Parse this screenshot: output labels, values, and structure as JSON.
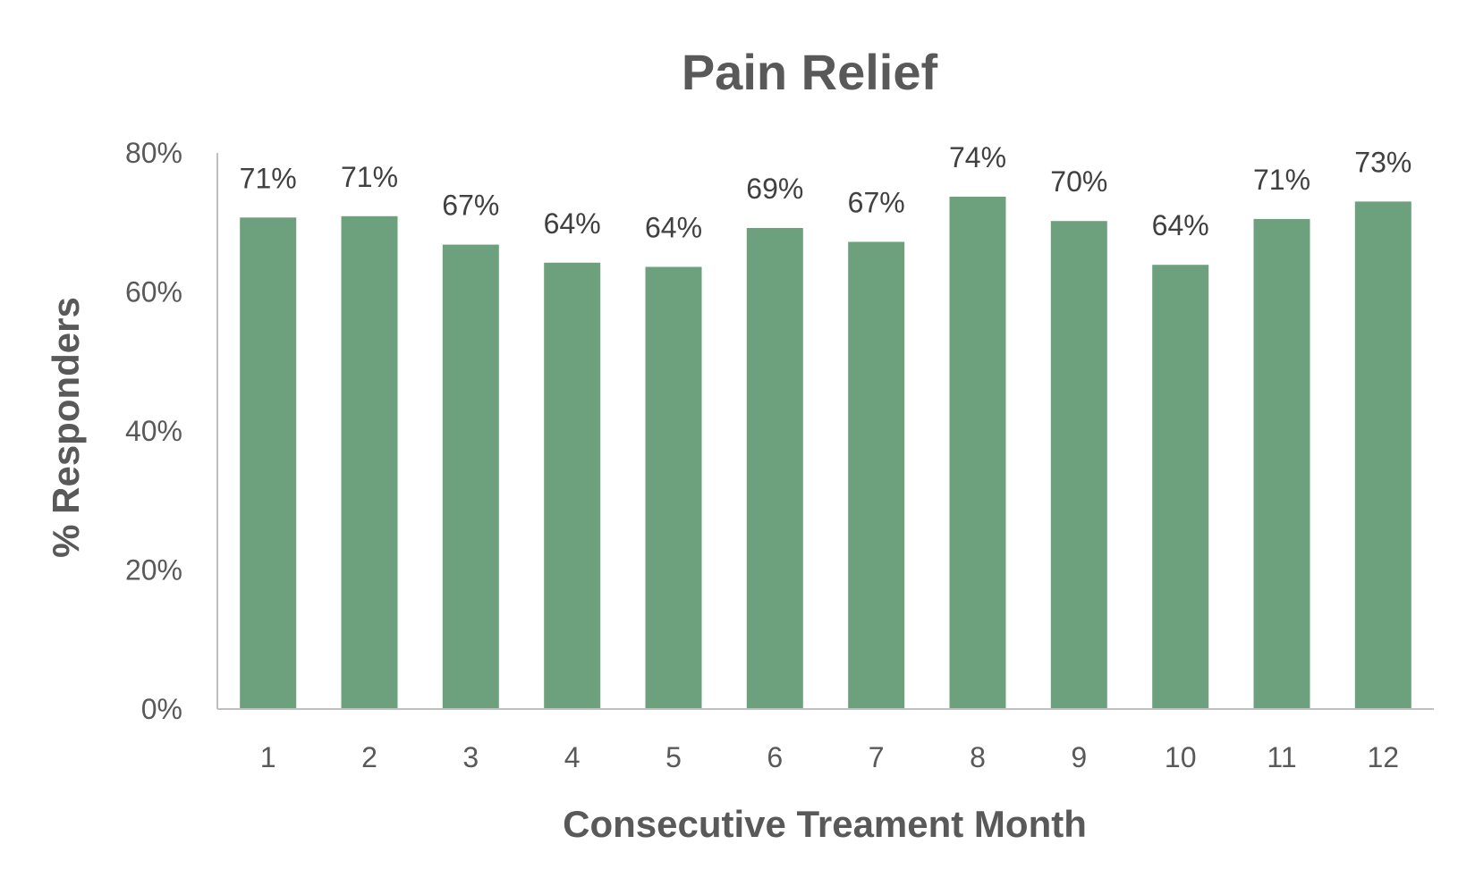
{
  "chart_data": {
    "type": "bar",
    "title": "Pain Relief",
    "xlabel": "Consecutive Treament Month",
    "ylabel": "% Responders",
    "categories": [
      "1",
      "2",
      "3",
      "4",
      "5",
      "6",
      "7",
      "8",
      "9",
      "10",
      "11",
      "12"
    ],
    "values": [
      0.707,
      0.709,
      0.668,
      0.642,
      0.636,
      0.692,
      0.672,
      0.737,
      0.702,
      0.639,
      0.705,
      0.73
    ],
    "data_labels": [
      "71%",
      "71%",
      "67%",
      "64%",
      "64%",
      "69%",
      "67%",
      "74%",
      "70%",
      "64%",
      "71%",
      "73%"
    ],
    "ylim": [
      0,
      0.8
    ],
    "yticks": [
      0,
      0.2,
      0.4,
      0.6,
      0.8
    ],
    "ytick_labels": [
      "0%",
      "20%",
      "40%",
      "60%",
      "80%"
    ],
    "grid": false,
    "legend": "none",
    "bar_color": "#6da07c",
    "axis_color": "#bfbfbf",
    "text_color": "#595959"
  }
}
